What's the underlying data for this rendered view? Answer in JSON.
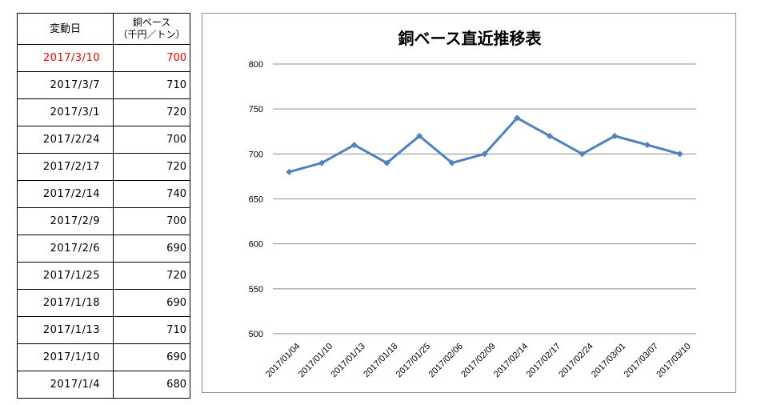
{
  "table": {
    "header_date": "変動日",
    "header_price_line1": "銅ベース",
    "header_price_line2": "（千円／トン）",
    "rows": [
      {
        "date": "2017/3/10",
        "price": "700"
      },
      {
        "date": "2017/3/7",
        "price": "710"
      },
      {
        "date": "2017/3/1",
        "price": "720"
      },
      {
        "date": "2017/2/24",
        "price": "700"
      },
      {
        "date": "2017/2/17",
        "price": "720"
      },
      {
        "date": "2017/2/14",
        "price": "740"
      },
      {
        "date": "2017/2/9",
        "price": "700"
      },
      {
        "date": "2017/2/6",
        "price": "690"
      },
      {
        "date": "2017/1/25",
        "price": "720"
      },
      {
        "date": "2017/1/18",
        "price": "690"
      },
      {
        "date": "2017/1/13",
        "price": "710"
      },
      {
        "date": "2017/1/10",
        "price": "690"
      },
      {
        "date": "2017/1/4",
        "price": "680"
      }
    ],
    "highlight_color": "#ff0000"
  },
  "chart_data": {
    "type": "line",
    "title": "銅ベース直近推移表",
    "x": [
      "2017/01/04",
      "2017/01/10",
      "2017/01/13",
      "2017/01/18",
      "2017/01/25",
      "2017/02/06",
      "2017/02/09",
      "2017/02/14",
      "2017/02/17",
      "2017/02/24",
      "2017/03/01",
      "2017/03/07",
      "2017/03/10"
    ],
    "series": [
      {
        "values": [
          680,
          690,
          710,
          690,
          720,
          690,
          700,
          740,
          720,
          700,
          720,
          710,
          700
        ],
        "color": "#4f81bd",
        "marker": "diamond"
      }
    ],
    "ylim": [
      500,
      800
    ],
    "yticks": [
      500,
      550,
      600,
      650,
      700,
      750,
      800
    ],
    "grid": true,
    "legend": "none"
  }
}
